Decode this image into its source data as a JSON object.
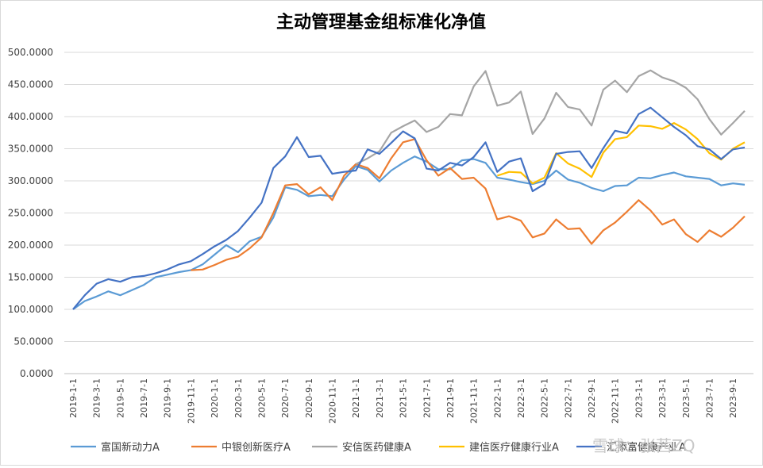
{
  "chart_data": {
    "type": "line",
    "title": "主动管理基金组标准化净值",
    "xlabel": "",
    "ylabel": "",
    "ylim": [
      0,
      500
    ],
    "ytick_step": 50,
    "ytick_labels": [
      "0.0000",
      "50.0000",
      "100.0000",
      "150.0000",
      "200.0000",
      "250.0000",
      "300.0000",
      "350.0000",
      "400.0000",
      "450.0000",
      "500.0000"
    ],
    "grid": true,
    "legend_position": "bottom",
    "x_tick_labels": [
      "2019-1-1",
      "2019-3-1",
      "2019-5-1",
      "2019-7-1",
      "2019-9-1",
      "2019-11-1",
      "2020-1-1",
      "2020-3-1",
      "2020-5-1",
      "2020-7-1",
      "2020-9-1",
      "2020-11-1",
      "2021-1-1",
      "2021-3-1",
      "2021-5-1",
      "2021-7-1",
      "2021-9-1",
      "2021-11-1",
      "2022-1-1",
      "2022-3-1",
      "2022-5-1",
      "2022-7-1",
      "2022-9-1",
      "2022-11-1",
      "2023-1-1",
      "2023-3-1",
      "2023-5-1",
      "2023-7-1",
      "2023-9-1"
    ],
    "x": [
      "2019-1",
      "2019-2",
      "2019-3",
      "2019-4",
      "2019-5",
      "2019-6",
      "2019-7",
      "2019-8",
      "2019-9",
      "2019-10",
      "2019-11",
      "2019-12",
      "2020-1",
      "2020-2",
      "2020-3",
      "2020-4",
      "2020-5",
      "2020-6",
      "2020-7",
      "2020-8",
      "2020-9",
      "2020-10",
      "2020-11",
      "2020-12",
      "2021-1",
      "2021-2",
      "2021-3",
      "2021-4",
      "2021-5",
      "2021-6",
      "2021-7",
      "2021-8",
      "2021-9",
      "2021-10",
      "2021-11",
      "2021-12",
      "2022-1",
      "2022-2",
      "2022-3",
      "2022-4",
      "2022-5",
      "2022-6",
      "2022-7",
      "2022-8",
      "2022-9",
      "2022-10",
      "2022-11",
      "2022-12",
      "2023-1",
      "2023-2",
      "2023-3",
      "2023-4",
      "2023-5",
      "2023-6",
      "2023-7",
      "2023-8",
      "2023-9",
      "2023-10"
    ],
    "series": [
      {
        "name": "富国新动力A",
        "color": "#5B9BD5",
        "values": [
          100,
          113,
          120,
          128,
          122,
          130,
          138,
          150,
          154,
          158,
          161,
          170,
          185,
          200,
          189,
          206,
          213,
          243,
          290,
          286,
          276,
          278,
          276,
          302,
          323,
          317,
          299,
          316,
          328,
          338,
          330,
          318,
          318,
          332,
          334,
          328,
          305,
          302,
          298,
          295,
          300,
          316,
          302,
          297,
          289,
          284,
          292,
          293,
          305,
          304,
          309,
          313,
          307,
          305,
          303,
          293,
          296,
          294
        ]
      },
      {
        "name": "中银创新医疗A",
        "color": "#ED7D31",
        "values": [
          null,
          null,
          null,
          null,
          null,
          null,
          null,
          null,
          null,
          null,
          161,
          162,
          169,
          177,
          182,
          195,
          212,
          250,
          293,
          295,
          279,
          290,
          270,
          308,
          326,
          320,
          304,
          335,
          360,
          365,
          332,
          308,
          320,
          303,
          305,
          288,
          240,
          245,
          238,
          212,
          218,
          240,
          225,
          226,
          202,
          223,
          235,
          252,
          270,
          254,
          232,
          240,
          217,
          205,
          223,
          213,
          227,
          245
        ]
      },
      {
        "name": "安信医药健康A",
        "color": "#A5A5A5",
        "values": [
          null,
          null,
          null,
          null,
          null,
          null,
          null,
          null,
          null,
          null,
          null,
          null,
          null,
          null,
          null,
          null,
          null,
          null,
          null,
          null,
          null,
          null,
          null,
          null,
          326,
          335,
          346,
          375,
          385,
          394,
          376,
          384,
          404,
          402,
          447,
          471,
          417,
          422,
          439,
          373,
          397,
          437,
          415,
          411,
          386,
          442,
          456,
          438,
          463,
          472,
          461,
          455,
          445,
          427,
          396,
          372,
          390,
          409
        ]
      },
      {
        "name": "建信医疗健康行业A",
        "color": "#FFC000",
        "values": [
          null,
          null,
          null,
          null,
          null,
          null,
          null,
          null,
          null,
          null,
          null,
          null,
          null,
          null,
          null,
          null,
          null,
          null,
          null,
          null,
          null,
          null,
          null,
          null,
          null,
          null,
          null,
          null,
          null,
          null,
          null,
          null,
          null,
          null,
          null,
          null,
          308,
          314,
          313,
          296,
          305,
          343,
          327,
          319,
          306,
          344,
          365,
          368,
          386,
          385,
          381,
          390,
          380,
          365,
          343,
          333,
          350,
          360
        ]
      },
      {
        "name": "汇添富健康产业A",
        "color": "#4472C4",
        "values": [
          100,
          122,
          140,
          147,
          143,
          150,
          152,
          156,
          162,
          170,
          175,
          186,
          198,
          208,
          222,
          243,
          266,
          320,
          338,
          368,
          337,
          339,
          311,
          314,
          316,
          349,
          342,
          359,
          377,
          366,
          319,
          316,
          328,
          324,
          337,
          360,
          314,
          330,
          335,
          284,
          295,
          342,
          345,
          346,
          320,
          351,
          378,
          374,
          404,
          414,
          399,
          384,
          371,
          354,
          349,
          334,
          349,
          352
        ]
      }
    ],
    "watermark": "雪球：张茜ZQ"
  }
}
